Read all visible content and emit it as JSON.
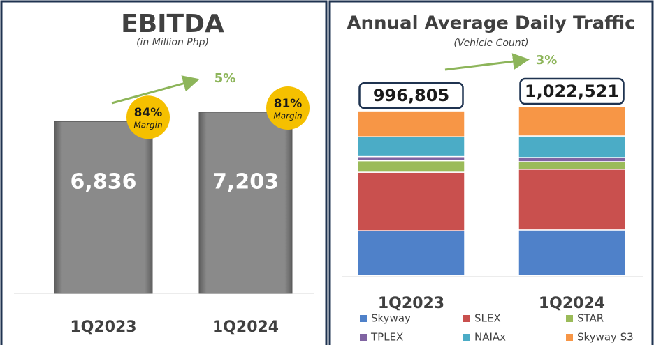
{
  "chart_data": [
    {
      "type": "bar",
      "title": "EBITDA",
      "subtitle": "(in Million Php)",
      "categories": [
        "1Q2023",
        "1Q2024"
      ],
      "values": [
        6836,
        7203
      ],
      "value_labels": [
        "6,836",
        "7,203"
      ],
      "color": "#7f7f7f",
      "annotation": "5%",
      "margins": [
        84,
        81
      ],
      "margin_labels": [
        "84%",
        "81%"
      ],
      "margin_caption": "Margin"
    },
    {
      "type": "stacked_bar",
      "title": "Annual Average Daily Traffic",
      "subtitle": "(Vehicle Count)",
      "categories": [
        "1Q2023",
        "1Q2024"
      ],
      "series": [
        {
          "name": "Skyway",
          "color": "#4f81c9",
          "values": [
            270000,
            275000
          ]
        },
        {
          "name": "SLEX",
          "color": "#c9504e",
          "values": [
            355000,
            368000
          ]
        },
        {
          "name": "STAR",
          "color": "#9bbb59",
          "values": [
            70000,
            46000
          ]
        },
        {
          "name": "TPLEX",
          "color": "#8064a2",
          "values": [
            25000,
            25000
          ]
        },
        {
          "name": "NAIAx",
          "color": "#4bacc6",
          "values": [
            120000,
            131000
          ]
        },
        {
          "name": "Skyway S3",
          "color": "#f79646",
          "values": [
            156805,
            177521
          ]
        }
      ],
      "totals": [
        996805,
        1022521
      ],
      "total_labels": [
        "996,805",
        "1,022,521"
      ],
      "annotation": "3%"
    }
  ]
}
